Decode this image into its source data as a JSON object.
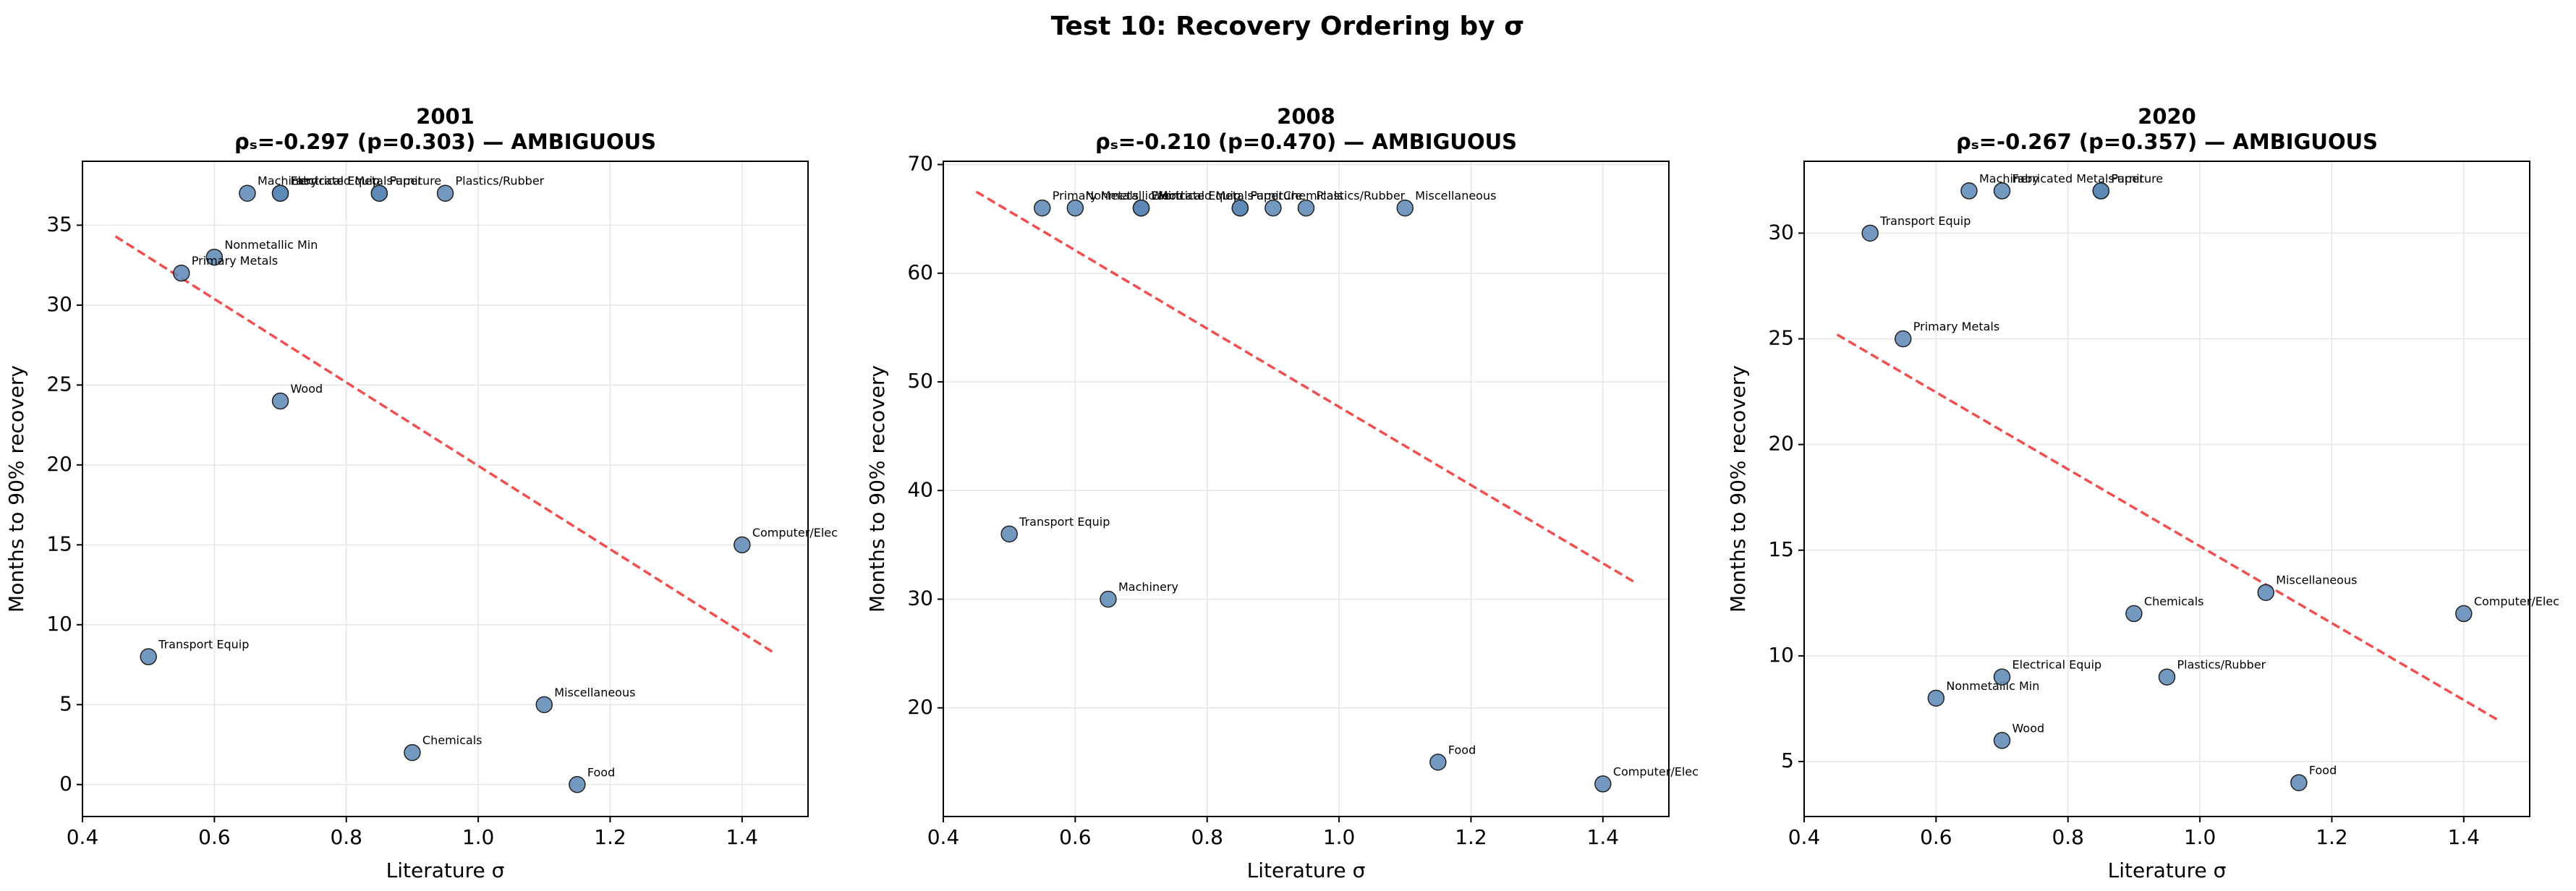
{
  "title": "Test 10: Recovery Ordering by σ",
  "chart_data": [
    {
      "type": "scatter",
      "title": "2001",
      "subtitle": "ρₛ=-0.297 (p=0.303) — AMBIGUOUS",
      "xlabel": "Literature σ",
      "ylabel": "Months to 90% recovery",
      "xlim": [
        0.4,
        1.5
      ],
      "ylim": [
        -2,
        39
      ],
      "xticks": [
        0.4,
        0.6,
        0.8,
        {
          "value": 1,
          "label": "1.0"
        },
        1.2,
        1.4
      ],
      "yticks": [
        0,
        5,
        10,
        15,
        20,
        25,
        30,
        35
      ],
      "grid": true,
      "color": "#5b87b5",
      "labels": [
        "Food",
        "Wood",
        "Paper",
        "Chemicals",
        "Plastics/Rubber",
        "Nonmetallic Min",
        "Primary Metals",
        "Fabricated Metals",
        "Machinery",
        "Computer/Elec",
        "Electrical Equip",
        "Transport Equip",
        "Furniture",
        "Miscellaneous"
      ],
      "x": [
        1.15,
        0.7,
        0.85,
        0.9,
        0.95,
        0.6,
        0.55,
        0.7,
        0.65,
        1.4,
        0.7,
        0.5,
        0.85,
        1.1
      ],
      "values": [
        0,
        24,
        37,
        2,
        37,
        33,
        32,
        37,
        37,
        15,
        37,
        8,
        37,
        5
      ],
      "trend": {
        "x": [
          0.45,
          1.45
        ],
        "values": [
          34.3,
          8.2
        ],
        "color": "#f03c3c"
      }
    },
    {
      "type": "scatter",
      "title": "2008",
      "subtitle": "ρₛ=-0.210 (p=0.470) — AMBIGUOUS",
      "xlabel": "Literature σ",
      "ylabel": "Months to 90% recovery",
      "xlim": [
        0.4,
        1.5
      ],
      "ylim": [
        10,
        70.3
      ],
      "xticks": [
        0.4,
        0.6,
        0.8,
        {
          "value": 1,
          "label": "1.0"
        },
        1.2,
        1.4
      ],
      "yticks": [
        20,
        30,
        40,
        50,
        60,
        70
      ],
      "grid": true,
      "color": "#5b87b5",
      "labels": [
        "Food",
        "Wood",
        "Paper",
        "Chemicals",
        "Plastics/Rubber",
        "Nonmetallic Min",
        "Primary Metals",
        "Fabricated Metals",
        "Machinery",
        "Computer/Elec",
        "Electrical Equip",
        "Transport Equip",
        "Furniture",
        "Miscellaneous"
      ],
      "x": [
        1.15,
        0.7,
        0.85,
        0.9,
        0.95,
        0.6,
        0.55,
        0.7,
        0.65,
        1.4,
        0.7,
        0.5,
        0.85,
        1.1
      ],
      "values": [
        15,
        66,
        66,
        66,
        66,
        66,
        66,
        66,
        30,
        13,
        66,
        36,
        66,
        66
      ],
      "trend": {
        "x": [
          0.45,
          1.45
        ],
        "values": [
          67.5,
          31.5
        ],
        "color": "#f03c3c"
      }
    },
    {
      "type": "scatter",
      "title": "2020",
      "subtitle": "ρₛ=-0.267 (p=0.357) — AMBIGUOUS",
      "xlabel": "Literature σ",
      "ylabel": "Months to 90% recovery",
      "xlim": [
        0.4,
        1.5
      ],
      "ylim": [
        2.4,
        33.4
      ],
      "xticks": [
        0.4,
        0.6,
        0.8,
        {
          "value": 1,
          "label": "1.0"
        },
        1.2,
        1.4
      ],
      "yticks": [
        5,
        10,
        15,
        20,
        25,
        30
      ],
      "grid": true,
      "color": "#5b87b5",
      "labels": [
        "Food",
        "Wood",
        "Paper",
        "Chemicals",
        "Plastics/Rubber",
        "Nonmetallic Min",
        "Primary Metals",
        "Fabricated Metals",
        "Machinery",
        "Computer/Elec",
        "Electrical Equip",
        "Transport Equip",
        "Furniture",
        "Miscellaneous"
      ],
      "x": [
        1.15,
        0.7,
        0.85,
        0.9,
        0.95,
        0.6,
        0.55,
        0.7,
        0.65,
        1.4,
        0.7,
        0.5,
        0.85,
        1.1
      ],
      "values": [
        4,
        6,
        32,
        12,
        9,
        8,
        25,
        32,
        32,
        12,
        9,
        30,
        32,
        13
      ],
      "trend": {
        "x": [
          0.45,
          1.45
        ],
        "values": [
          25.2,
          7.0
        ],
        "color": "#f03c3c"
      }
    }
  ]
}
